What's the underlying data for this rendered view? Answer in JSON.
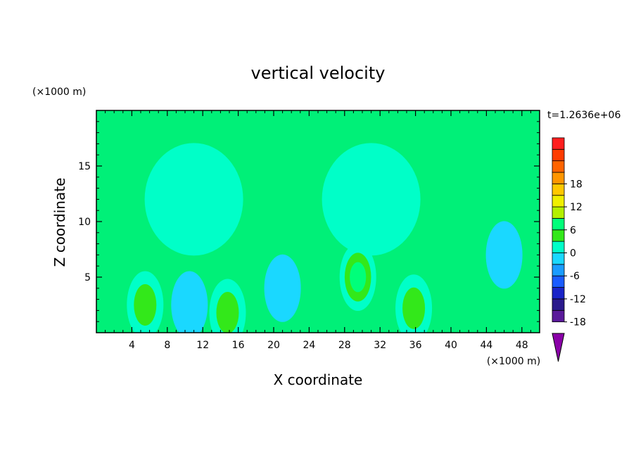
{
  "chart_data": {
    "type": "heatmap",
    "title": "vertical velocity",
    "xlabel": "X coordinate",
    "ylabel": "Z coordinate",
    "x_unit_label": "(×1000 m)",
    "y_unit_label": "(×1000 m)",
    "time_label": "t=1.2636e+06",
    "xlim": [
      0,
      50
    ],
    "ylim": [
      0,
      20
    ],
    "x_ticks": [
      "4",
      "8",
      "12",
      "16",
      "20",
      "24",
      "28",
      "32",
      "36",
      "40",
      "44",
      "48"
    ],
    "x_tick_values": [
      4,
      8,
      12,
      16,
      20,
      24,
      28,
      32,
      36,
      40,
      44,
      48
    ],
    "y_ticks": [
      "5",
      "10",
      "15"
    ],
    "y_tick_values": [
      5,
      10,
      15
    ],
    "colorbar": {
      "range": [
        -21,
        21
      ],
      "step": 3,
      "labels": [
        "18",
        "12",
        "6",
        "0",
        "-6",
        "-12",
        "-18"
      ],
      "label_values": [
        18,
        12,
        6,
        0,
        -6,
        -12,
        -18
      ],
      "colors": [
        "#8a00a8",
        "#5a1a9a",
        "#2a1a8c",
        "#1a24c8",
        "#1a5cff",
        "#1a9cff",
        "#1ad8ff",
        "#00ffc8",
        "#33e81a",
        "#00ff7a",
        "#b4f000",
        "#f0f000",
        "#ffc800",
        "#ff9600",
        "#ff6400",
        "#ff3c00",
        "#ff1e1e",
        "#f0a0a0"
      ],
      "background_color": "#00f078"
    },
    "features": [
      {
        "kind": "updraft",
        "x": 29.5,
        "z": 5.0,
        "peak": 9
      },
      {
        "kind": "updraft",
        "x": 35.8,
        "z": 2.2,
        "peak": 6
      },
      {
        "kind": "updraft",
        "x": 5.5,
        "z": 2.5,
        "peak": 6
      },
      {
        "kind": "updraft",
        "x": 14.8,
        "z": 1.8,
        "peak": 6
      },
      {
        "kind": "weak_updraft_region",
        "x": 31.0,
        "z": 12.0,
        "peak": 1
      },
      {
        "kind": "weak_updraft_region",
        "x": 11.0,
        "z": 12.0,
        "peak": 1
      },
      {
        "kind": "downdraft",
        "x": 46.0,
        "z": 7.0,
        "peak": -3
      },
      {
        "kind": "downdraft",
        "x": 21.0,
        "z": 4.0,
        "peak": -3
      },
      {
        "kind": "downdraft",
        "x": 10.5,
        "z": 2.5,
        "peak": -3
      }
    ]
  }
}
